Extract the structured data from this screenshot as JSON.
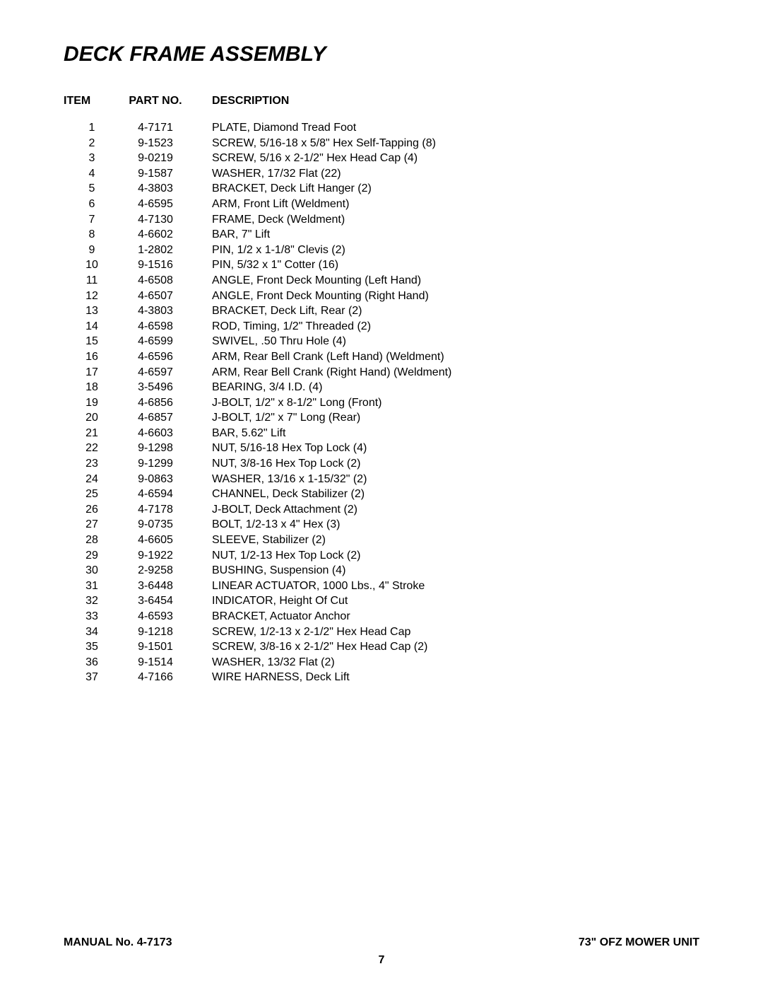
{
  "title": "DECK FRAME ASSEMBLY",
  "headers": {
    "item": "ITEM",
    "partno": "PART NO.",
    "description": "DESCRIPTION"
  },
  "parts": [
    {
      "item": "1",
      "partno": "4-7171",
      "desc": "PLATE, Diamond Tread Foot"
    },
    {
      "item": "2",
      "partno": "9-1523",
      "desc": "SCREW, 5/16-18 x 5/8\" Hex Self-Tapping (8)"
    },
    {
      "item": "3",
      "partno": "9-0219",
      "desc": "SCREW, 5/16 x 2-1/2\" Hex Head Cap (4)"
    },
    {
      "item": "4",
      "partno": "9-1587",
      "desc": "WASHER, 17/32 Flat (22)"
    },
    {
      "item": "5",
      "partno": "4-3803",
      "desc": "BRACKET, Deck Lift Hanger (2)"
    },
    {
      "item": "6",
      "partno": "4-6595",
      "desc": "ARM, Front Lift (Weldment)"
    },
    {
      "item": "7",
      "partno": "4-7130",
      "desc": "FRAME, Deck (Weldment)"
    },
    {
      "item": "8",
      "partno": "4-6602",
      "desc": "BAR, 7\" Lift"
    },
    {
      "item": "9",
      "partno": "1-2802",
      "desc": "PIN, 1/2 x 1-1/8\" Clevis (2)"
    },
    {
      "item": "10",
      "partno": "9-1516",
      "desc": "PIN, 5/32 x 1\" Cotter (16)"
    },
    {
      "item": "11",
      "partno": "4-6508",
      "desc": "ANGLE, Front Deck Mounting (Left Hand)"
    },
    {
      "item": "12",
      "partno": "4-6507",
      "desc": "ANGLE, Front Deck Mounting (Right Hand)"
    },
    {
      "item": "13",
      "partno": "4-3803",
      "desc": "BRACKET, Deck Lift, Rear (2)"
    },
    {
      "item": "14",
      "partno": "4-6598",
      "desc": "ROD, Timing, 1/2\" Threaded (2)"
    },
    {
      "item": "15",
      "partno": "4-6599",
      "desc": "SWIVEL, .50 Thru Hole (4)"
    },
    {
      "item": "16",
      "partno": "4-6596",
      "desc": "ARM, Rear Bell Crank (Left Hand) (Weldment)"
    },
    {
      "item": "17",
      "partno": "4-6597",
      "desc": "ARM, Rear Bell Crank (Right Hand) (Weldment)"
    },
    {
      "item": "18",
      "partno": "3-5496",
      "desc": "BEARING, 3/4 I.D. (4)"
    },
    {
      "item": "19",
      "partno": "4-6856",
      "desc": "J-BOLT, 1/2\" x 8-1/2\" Long (Front)"
    },
    {
      "item": "20",
      "partno": "4-6857",
      "desc": "J-BOLT, 1/2\" x 7\" Long (Rear)"
    },
    {
      "item": "21",
      "partno": "4-6603",
      "desc": "BAR, 5.62\" Lift"
    },
    {
      "item": "22",
      "partno": "9-1298",
      "desc": "NUT, 5/16-18 Hex Top Lock (4)"
    },
    {
      "item": "23",
      "partno": "9-1299",
      "desc": "NUT, 3/8-16 Hex Top Lock (2)"
    },
    {
      "item": "24",
      "partno": "9-0863",
      "desc": "WASHER, 13/16 x 1-15/32\" (2)"
    },
    {
      "item": "25",
      "partno": "4-6594",
      "desc": "CHANNEL, Deck Stabilizer (2)"
    },
    {
      "item": "26",
      "partno": "4-7178",
      "desc": "J-BOLT, Deck Attachment (2)"
    },
    {
      "item": "27",
      "partno": "9-0735",
      "desc": "BOLT, 1/2-13 x 4\" Hex (3)"
    },
    {
      "item": "28",
      "partno": "4-6605",
      "desc": "SLEEVE, Stabilizer (2)"
    },
    {
      "item": "29",
      "partno": "9-1922",
      "desc": "NUT, 1/2-13 Hex Top Lock (2)"
    },
    {
      "item": "30",
      "partno": "2-9258",
      "desc": "BUSHING, Suspension (4)"
    },
    {
      "item": "31",
      "partno": "3-6448",
      "desc": "LINEAR ACTUATOR, 1000 Lbs., 4\" Stroke"
    },
    {
      "item": "32",
      "partno": "3-6454",
      "desc": "INDICATOR, Height Of Cut"
    },
    {
      "item": "33",
      "partno": "4-6593",
      "desc": "BRACKET, Actuator Anchor"
    },
    {
      "item": "34",
      "partno": "9-1218",
      "desc": "SCREW, 1/2-13 x 2-1/2\" Hex Head Cap"
    },
    {
      "item": "35",
      "partno": "9-1501",
      "desc": "SCREW, 3/8-16 x 2-1/2\" Hex Head Cap (2)"
    },
    {
      "item": "36",
      "partno": "9-1514",
      "desc": "WASHER, 13/32 Flat (2)"
    },
    {
      "item": "37",
      "partno": "4-7166",
      "desc": "WIRE HARNESS, Deck Lift"
    }
  ],
  "footer": {
    "manual": "MANUAL No. 4-7173",
    "unit": "73\" OFZ MOWER UNIT",
    "page": "7"
  }
}
